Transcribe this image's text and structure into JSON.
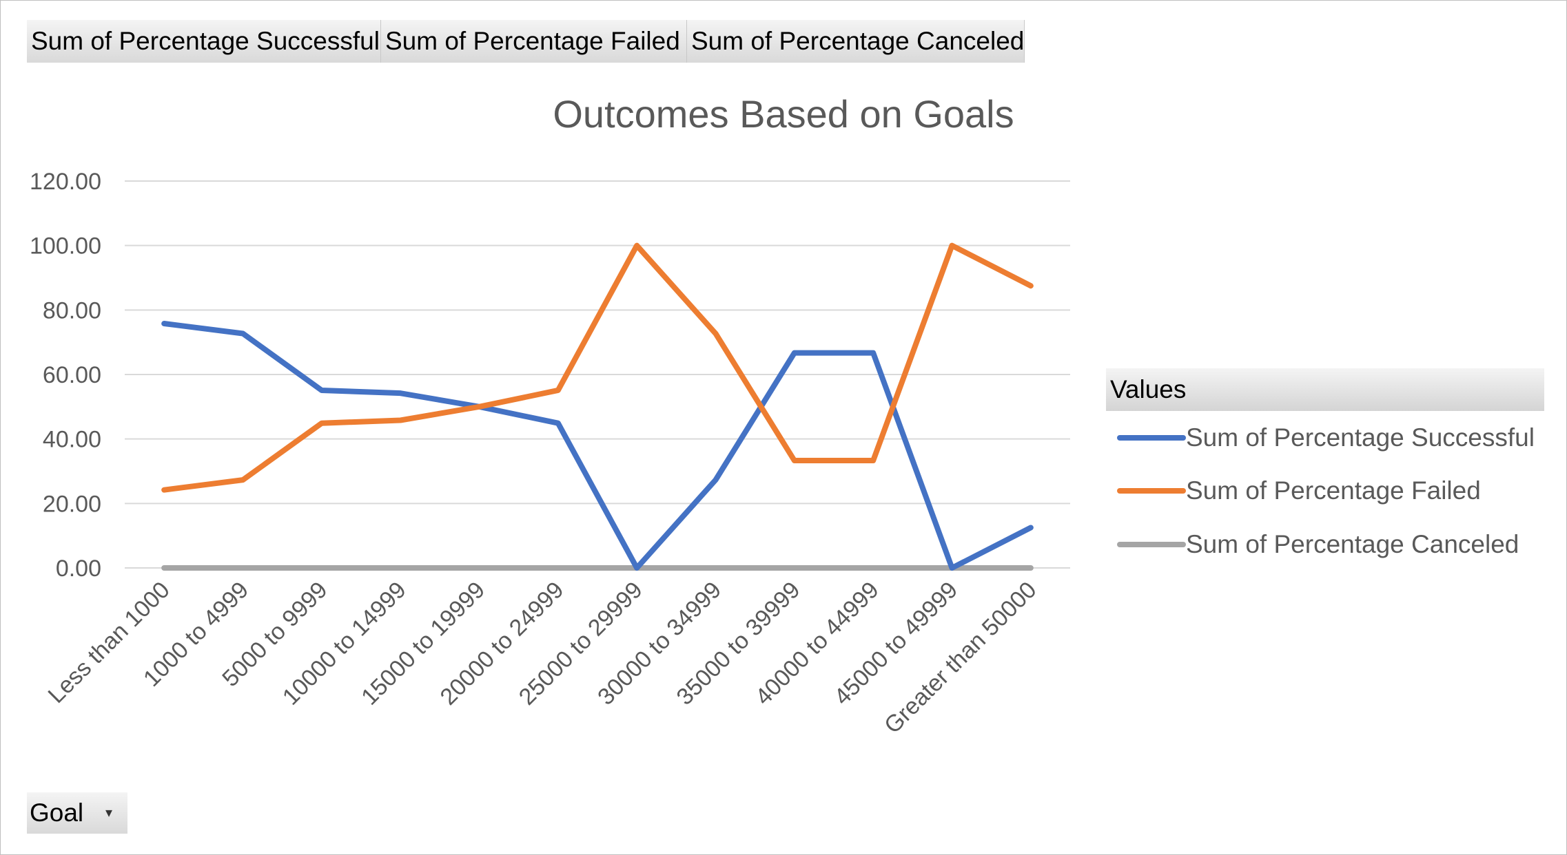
{
  "pivot_fields": {
    "successful": "Sum of Percentage  Successful",
    "failed": "Sum of Percentage  Failed",
    "canceled": "Sum of Percentage  Canceled"
  },
  "legend": {
    "header": "Values",
    "items": [
      {
        "label": "Sum of Percentage Successful",
        "color": "#4472c4"
      },
      {
        "label": "Sum of Percentage Failed",
        "color": "#ed7d31"
      },
      {
        "label": "Sum of Percentage Canceled",
        "color": "#a5a5a5"
      }
    ]
  },
  "goal_button": {
    "label": "Goal",
    "icon": "dropdown-arrow-icon"
  },
  "chart_data": {
    "type": "line",
    "title": "Outcomes Based on Goals",
    "categories": [
      "Less than 1000",
      "1000 to 4999",
      "5000 to 9999",
      "10000 to 14999",
      "15000 to 19999",
      "20000 to 24999",
      "25000 to 29999",
      "30000 to 34999",
      "35000 to 39999",
      "40000 to 44999",
      "45000 to 49999",
      "Greater than 50000"
    ],
    "yticks": [
      "0.00",
      "20.00",
      "40.00",
      "60.00",
      "80.00",
      "100.00",
      "120.00"
    ],
    "ylim": [
      0,
      120
    ],
    "grid": true,
    "legend_position": "right",
    "series": [
      {
        "name": "Sum of Percentage Successful",
        "color": "#4472c4",
        "values": [
          75.8,
          72.7,
          55.1,
          54.2,
          50.0,
          44.9,
          0,
          27.3,
          66.7,
          66.7,
          0,
          12.5
        ]
      },
      {
        "name": "Sum of Percentage Failed",
        "color": "#ed7d31",
        "values": [
          24.2,
          27.3,
          44.9,
          45.8,
          50.0,
          55.1,
          100,
          72.7,
          33.3,
          33.3,
          100,
          87.5
        ]
      },
      {
        "name": "Sum of Percentage Canceled",
        "color": "#a5a5a5",
        "values": [
          0,
          0,
          0,
          0,
          0,
          0,
          0,
          0,
          0,
          0,
          0,
          0
        ]
      }
    ]
  }
}
